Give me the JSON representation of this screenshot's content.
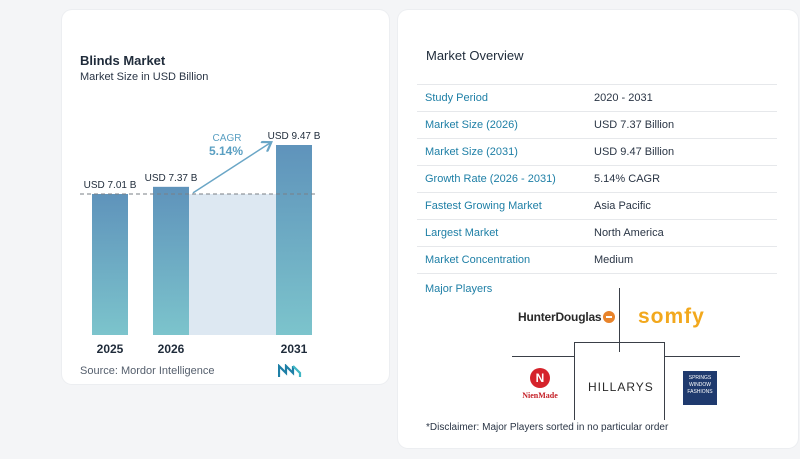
{
  "left_card": {
    "title": "Blinds Market",
    "subtitle": "Market Size in USD Billion",
    "source": "Source:  Mordor Intelligence",
    "brand_icon": "mordor-intelligence-logo-icon"
  },
  "chart_data": {
    "type": "bar",
    "categories": [
      "2025",
      "2026",
      "2031"
    ],
    "values": [
      7.01,
      7.37,
      9.47
    ],
    "value_labels": [
      "USD 7.01 B",
      "USD 7.37 B",
      "USD 9.47 B"
    ],
    "title": "Blinds Market",
    "subtitle": "Market Size in USD Billion",
    "xlabel": "",
    "ylabel": "",
    "ylim": [
      0,
      10
    ],
    "annotation": {
      "label": "CAGR",
      "value": "5.14%"
    },
    "colors": {
      "bar_top": "#5f93bb",
      "bar_bottom": "#7cc4cc",
      "band": "#dde8f2",
      "arrow": "#6aa6c6",
      "cagr_text": "#5a9fc2"
    },
    "grid": false,
    "legend": "none"
  },
  "overview": {
    "title": "Market Overview",
    "rows": [
      {
        "label": "Study Period",
        "value": "2020 - 2031"
      },
      {
        "label": "Market Size (2026)",
        "value": "USD 7.37 Billion"
      },
      {
        "label": "Market Size (2031)",
        "value": "USD 9.47 Billion"
      },
      {
        "label": "Growth Rate (2026 - 2031)",
        "value": "5.14% CAGR"
      },
      {
        "label": "Fastest Growing Market",
        "value": "Asia Pacific"
      },
      {
        "label": "Largest Market",
        "value": "North America"
      },
      {
        "label": "Market Concentration",
        "value": "Medium"
      }
    ],
    "players_label": "Major Players",
    "players": {
      "hunter_douglas": "HunterDouglas",
      "somfy": "somfy",
      "hillarys": "HILLARYS",
      "nien_made_mark": "N",
      "nien_made": "NienMade",
      "springs": "SPRINGS WINDOW FASHIONS"
    },
    "disclaimer": "*Disclaimer: Major Players sorted in no particular order"
  }
}
